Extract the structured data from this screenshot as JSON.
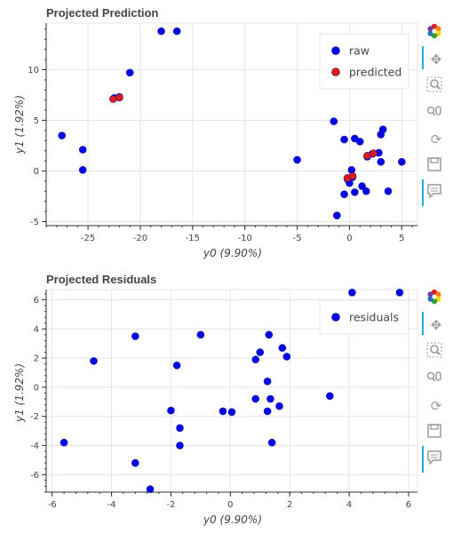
{
  "chart_data": [
    {
      "type": "scatter",
      "title": "Projected Prediction",
      "xlabel": "y0 (9.90%)",
      "ylabel": "y1 (1.92%)",
      "xlim": [
        -29,
        6.5
      ],
      "ylim": [
        -5.4,
        14.6
      ],
      "xticks": [
        -25,
        -20,
        -15,
        -10,
        -5,
        0,
        5
      ],
      "yticks": [
        -5,
        0,
        5,
        10
      ],
      "grid": true,
      "legend": "top-right",
      "series": [
        {
          "name": "raw",
          "color": "#0000ee",
          "points": [
            [
              -18,
              13.8
            ],
            [
              -16.5,
              13.8
            ],
            [
              -21,
              9.7
            ],
            [
              -22.5,
              7.2
            ],
            [
              -22,
              7.3
            ],
            [
              -27.5,
              3.5
            ],
            [
              -25.5,
              2.1
            ],
            [
              -25.5,
              0.1
            ],
            [
              -5,
              1.1
            ],
            [
              -1.5,
              4.9
            ],
            [
              -0.5,
              3.1
            ],
            [
              0.5,
              3.2
            ],
            [
              1,
              2.9
            ],
            [
              3.2,
              4.1
            ],
            [
              3,
              3.6
            ],
            [
              2.8,
              1.8
            ],
            [
              2.2,
              1.7
            ],
            [
              1.7,
              1.4
            ],
            [
              0.2,
              0.1
            ],
            [
              5,
              0.9
            ],
            [
              3,
              0.9
            ],
            [
              -0.2,
              -0.8
            ],
            [
              0.3,
              -0.6
            ],
            [
              1.2,
              -1.5
            ],
            [
              1.6,
              -2.0
            ],
            [
              0.5,
              -2.1
            ],
            [
              -0.5,
              -2.3
            ],
            [
              0,
              -1.2
            ],
            [
              3.7,
              -2.0
            ],
            [
              -1.2,
              -4.4
            ]
          ]
        },
        {
          "name": "predicted",
          "color": "#e31a1c",
          "points": [
            [
              -22.6,
              7.1
            ],
            [
              -22.0,
              7.25
            ],
            [
              1.7,
              1.5
            ],
            [
              2.3,
              1.75
            ],
            [
              -0.2,
              -0.7
            ],
            [
              0.3,
              -0.5
            ]
          ]
        }
      ]
    },
    {
      "type": "scatter",
      "title": "Projected Residuals",
      "xlabel": "y0 (9.90%)",
      "ylabel": "y1 (1.92%)",
      "xlim": [
        -6.2,
        6.3
      ],
      "ylim": [
        -7.2,
        6.7
      ],
      "xticks": [
        -6,
        -4,
        -2,
        0,
        2,
        4,
        6
      ],
      "yticks": [
        -6,
        -4,
        -2,
        0,
        2,
        4,
        6
      ],
      "grid": true,
      "legend": "top-right",
      "series": [
        {
          "name": "residuals",
          "color": "#0000ee",
          "points": [
            [
              4.1,
              6.5
            ],
            [
              5.7,
              6.5
            ],
            [
              -3.2,
              3.5
            ],
            [
              -1,
              3.6
            ],
            [
              1.3,
              3.6
            ],
            [
              -4.6,
              1.8
            ],
            [
              -1.8,
              1.5
            ],
            [
              1,
              2.4
            ],
            [
              0.85,
              1.9
            ],
            [
              1.75,
              2.7
            ],
            [
              1.9,
              2.1
            ],
            [
              1.25,
              0.4
            ],
            [
              3.35,
              -0.6
            ],
            [
              0.85,
              -0.8
            ],
            [
              1.35,
              -0.8
            ],
            [
              1.65,
              -1.3
            ],
            [
              1.25,
              -1.65
            ],
            [
              -2,
              -1.6
            ],
            [
              -0.25,
              -1.65
            ],
            [
              0.05,
              -1.7
            ],
            [
              -1.7,
              -2.8
            ],
            [
              -1.7,
              -4.0
            ],
            [
              1.4,
              -3.8
            ],
            [
              -5.6,
              -3.8
            ],
            [
              -3.2,
              -5.2
            ],
            [
              -2.7,
              -7.0
            ]
          ]
        }
      ]
    }
  ],
  "toolbar": {
    "tools": [
      "logo-icon",
      "pan-icon",
      "box-zoom-icon",
      "wheel-zoom-icon",
      "reset-icon",
      "save-icon",
      "hover-icon"
    ]
  }
}
